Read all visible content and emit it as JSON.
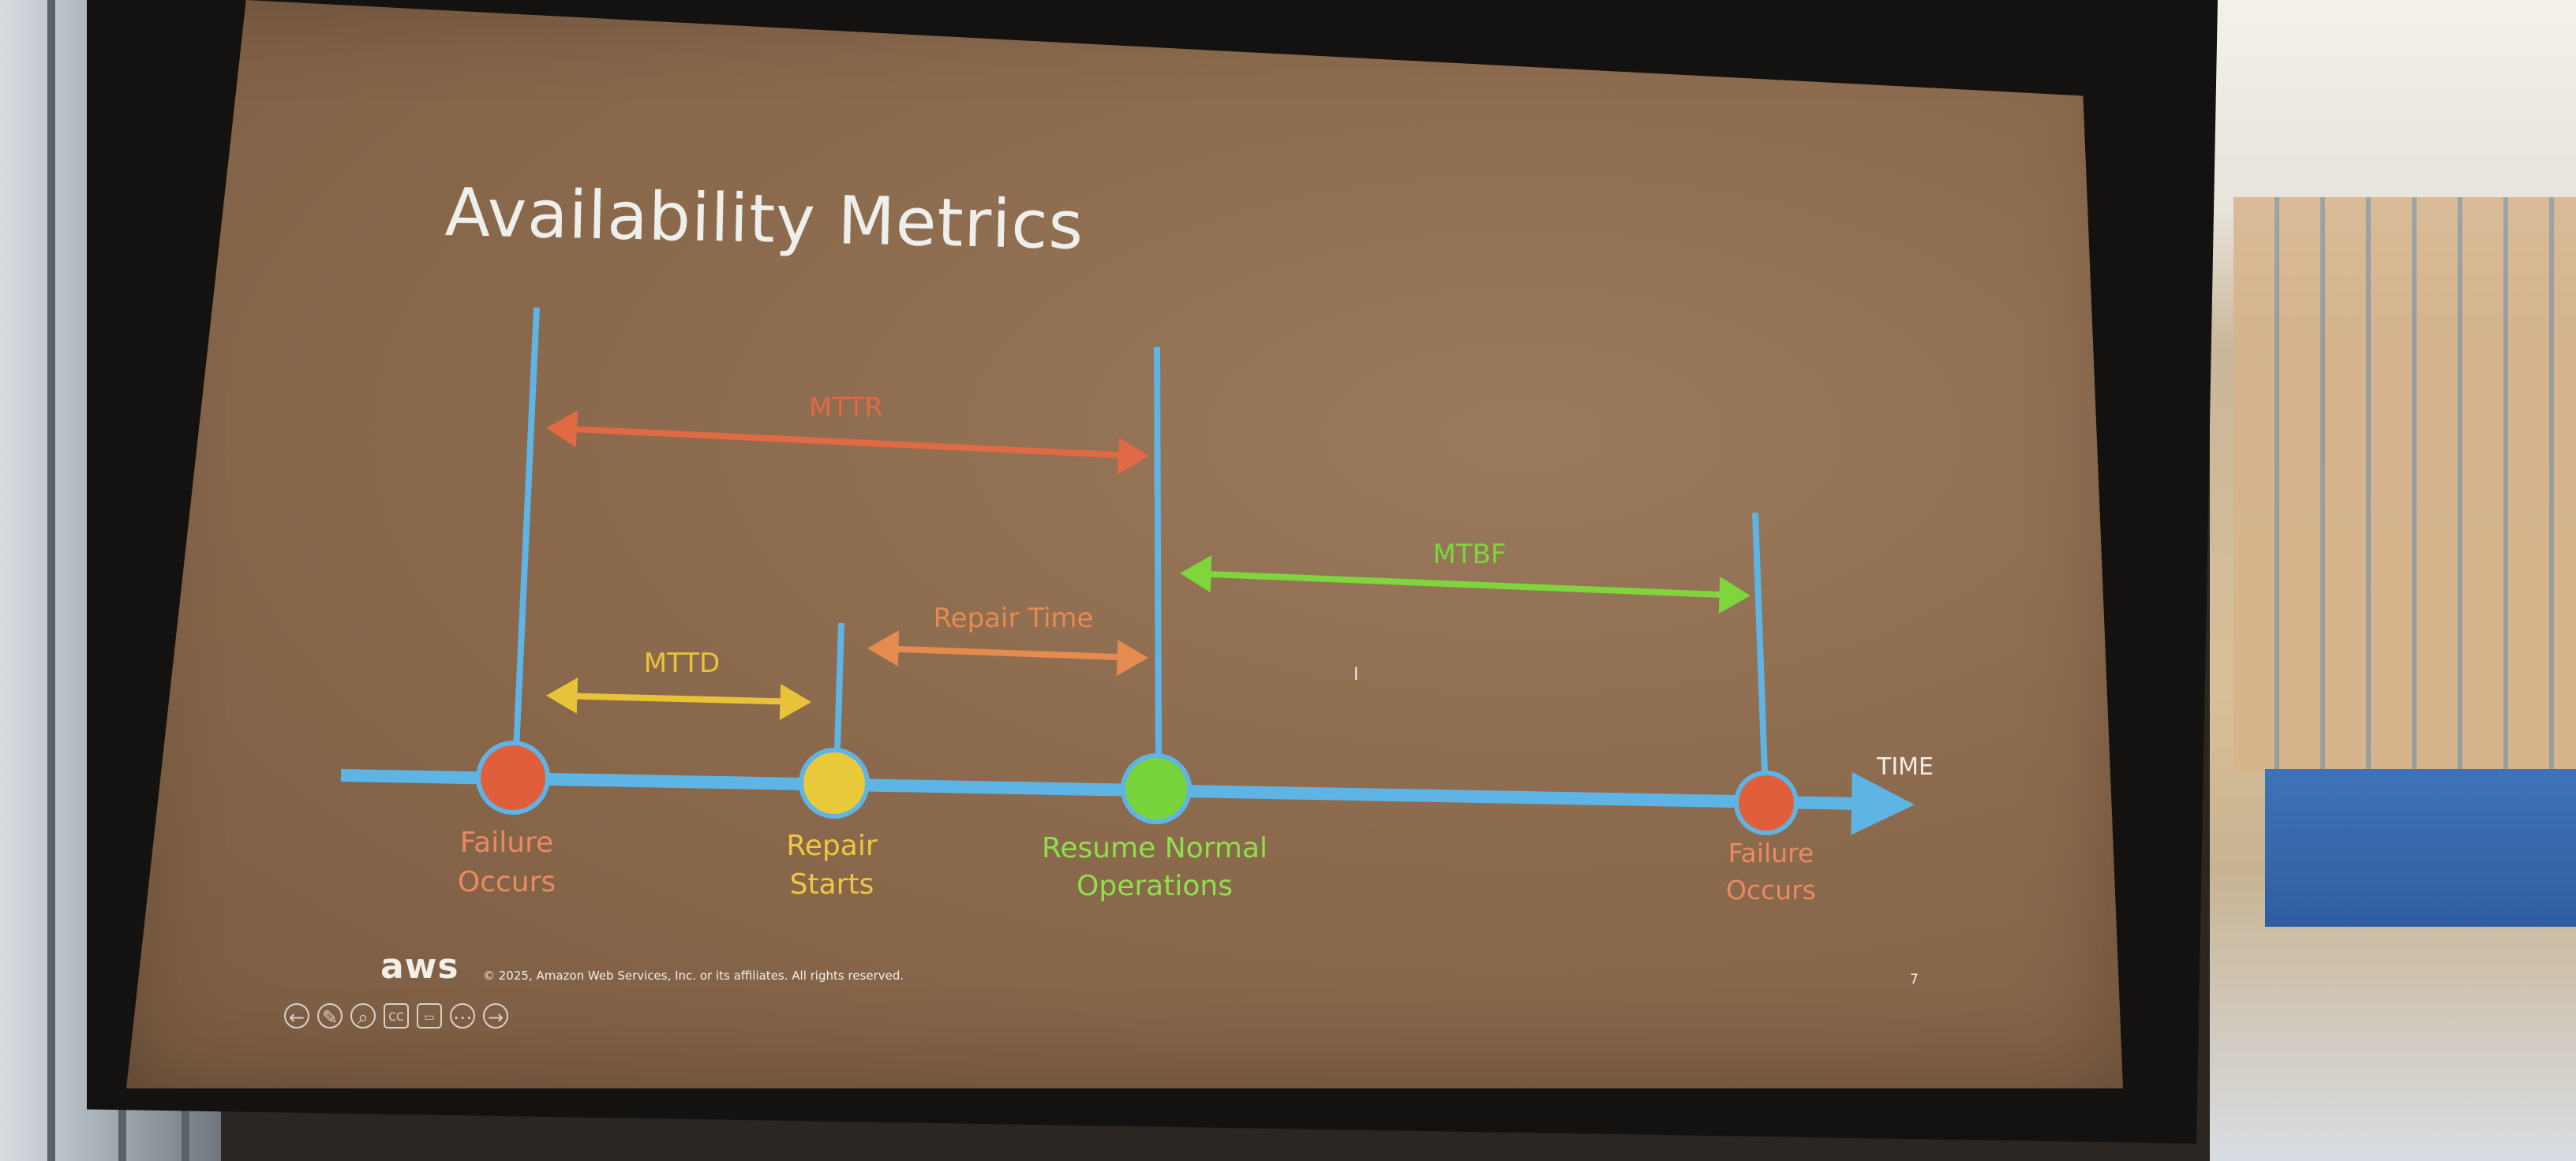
{
  "slide": {
    "title": "Availability Metrics",
    "copyright": "© 2025, Amazon Web Services, Inc. or its affiliates. All rights reserved.",
    "page_number": "7",
    "logo": "aws"
  },
  "diagram": {
    "axis_label": "TIME",
    "intervals": [
      {
        "name": "MTTR",
        "color": "#e06a44"
      },
      {
        "name": "MTTD",
        "color": "#e8c33a"
      },
      {
        "name": "Repair Time",
        "color": "#e58b4f"
      },
      {
        "name": "MTBF",
        "color": "#7ed53c"
      }
    ],
    "events": [
      {
        "line1": "Failure",
        "line2": "Occurs",
        "color": "#e05e3a",
        "text_color": "#ea8a62"
      },
      {
        "line1": "Repair",
        "line2": "Starts",
        "color": "#e8c93a",
        "text_color": "#f0c840"
      },
      {
        "line1": "Resume Normal",
        "line2": "Operations",
        "color": "#78d43a",
        "text_color": "#8fe04a"
      },
      {
        "line1": "Failure",
        "line2": "Occurs",
        "color": "#e05e3a",
        "text_color": "#ea8a62"
      }
    ],
    "timeline_color": "#5fb4e6"
  },
  "controls": {
    "icons": [
      "arrow-left-icon",
      "pen-icon",
      "zoom-icon",
      "captions-icon",
      "camera-icon",
      "more-icon",
      "arrow-right-icon"
    ],
    "glyphs": [
      "←",
      "✎",
      "⌕",
      "CC",
      "▭",
      "⋯",
      "→"
    ]
  }
}
